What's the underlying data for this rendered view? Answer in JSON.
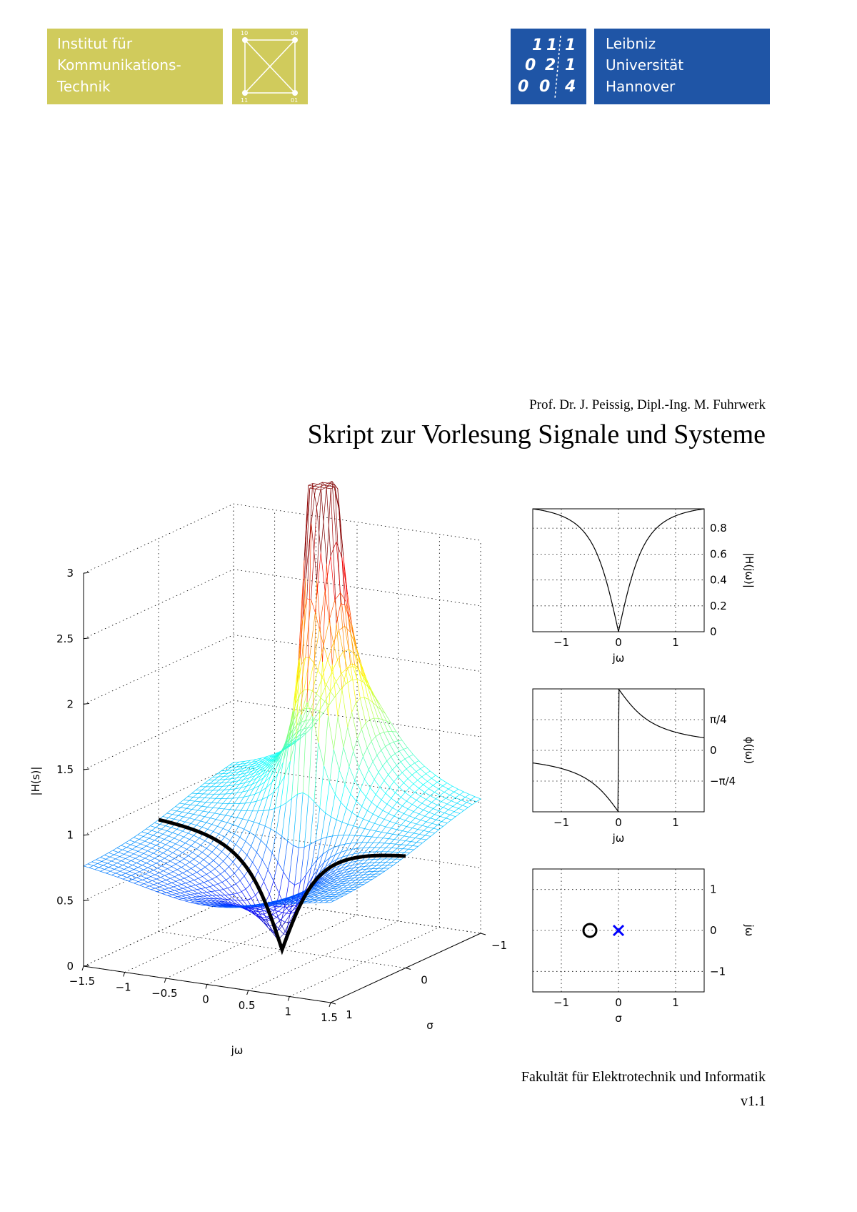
{
  "header": {
    "institute_lines": [
      "Institut für",
      "Kommunikations-",
      "Technik"
    ],
    "institute_logo_labels": [
      "10",
      "00",
      "11",
      "01"
    ],
    "university_lines": [
      "Leibniz",
      "Universität",
      "Hannover"
    ],
    "university_emblem_text": [
      "1",
      "1",
      "1",
      "0",
      "2",
      "1",
      "0",
      "0",
      "4"
    ]
  },
  "authors": "Prof. Dr. J. Peissig, Dipl.-Ing. M. Fuhrwerk",
  "title": "Skript zur Vorlesung Signale und Systeme",
  "faculty": "Fakultät für Elektrotechnik und Informatik",
  "version": "v1.1",
  "chart_data": [
    {
      "type": "surface",
      "zlabel": "|H(s)|",
      "xlabel": "jω",
      "ylabel": "σ",
      "z_ticks": [
        "0",
        "0.5",
        "1",
        "1.5",
        "2",
        "2.5",
        "3"
      ],
      "x_ticks": [
        "−1.5",
        "−1",
        "−0.5",
        "0",
        "0.5",
        "1",
        "1.5"
      ],
      "y_ticks": [
        "−1",
        "0",
        "1"
      ],
      "xlim": [
        -1.5,
        1.5
      ],
      "ylim": [
        -1,
        1
      ],
      "zlim": [
        0,
        3
      ],
      "grid": true,
      "colormap": "jet",
      "highlight_curve": "|H(jω)| along σ = 0"
    },
    {
      "type": "line",
      "xlabel": "jω",
      "ylabel": "|H(jω)|",
      "x_ticks": [
        "−1",
        "0",
        "1"
      ],
      "y_ticks": [
        "0",
        "0.2",
        "0.4",
        "0.6",
        "0.8"
      ],
      "xlim": [
        -1.5,
        1.5
      ],
      "ylim": [
        0,
        0.95
      ],
      "grid": true,
      "series": [
        {
          "x": [
            -1.5,
            -1.2,
            -1,
            -0.8,
            -0.6,
            -0.4,
            -0.2,
            0,
            0.2,
            0.4,
            0.6,
            0.8,
            1,
            1.2,
            1.5
          ],
          "y": [
            0.95,
            0.92,
            0.89,
            0.85,
            0.77,
            0.63,
            0.37,
            0,
            0.37,
            0.63,
            0.77,
            0.85,
            0.89,
            0.92,
            0.95
          ]
        }
      ]
    },
    {
      "type": "line",
      "xlabel": "jω",
      "ylabel": "ϕ(jω)",
      "x_ticks": [
        "−1",
        "0",
        "1"
      ],
      "y_ticks": [
        "−π/4",
        "0",
        "π/4"
      ],
      "xlim": [
        -1.5,
        1.5
      ],
      "ylim": [
        -1.5708,
        1.5708
      ],
      "grid": true,
      "series": [
        {
          "x": [
            -1.5,
            -1.2,
            -1,
            -0.8,
            -0.6,
            -0.4,
            -0.2,
            -0.02,
            0.02,
            0.2,
            0.4,
            0.6,
            0.8,
            1,
            1.2,
            1.5
          ],
          "y": [
            -0.32,
            -0.39,
            -0.46,
            -0.56,
            -0.69,
            -0.9,
            -1.19,
            -1.53,
            1.53,
            1.19,
            0.9,
            0.69,
            0.56,
            0.46,
            0.39,
            0.32
          ]
        }
      ]
    },
    {
      "type": "scatter",
      "xlabel": "σ",
      "ylabel": "jω",
      "x_ticks": [
        "−1",
        "0",
        "1"
      ],
      "y_ticks": [
        "−1",
        "0",
        "1"
      ],
      "xlim": [
        -1.5,
        1.5
      ],
      "ylim": [
        -1.5,
        1.5
      ],
      "grid": true,
      "points": [
        {
          "x": -0.5,
          "y": 0,
          "marker": "o",
          "color": "#000000"
        },
        {
          "x": 0,
          "y": 0,
          "marker": "x",
          "color": "#0000ff"
        }
      ]
    }
  ],
  "colors": {
    "ikt": "#d0cb5c",
    "luh": "#1f55a6"
  }
}
